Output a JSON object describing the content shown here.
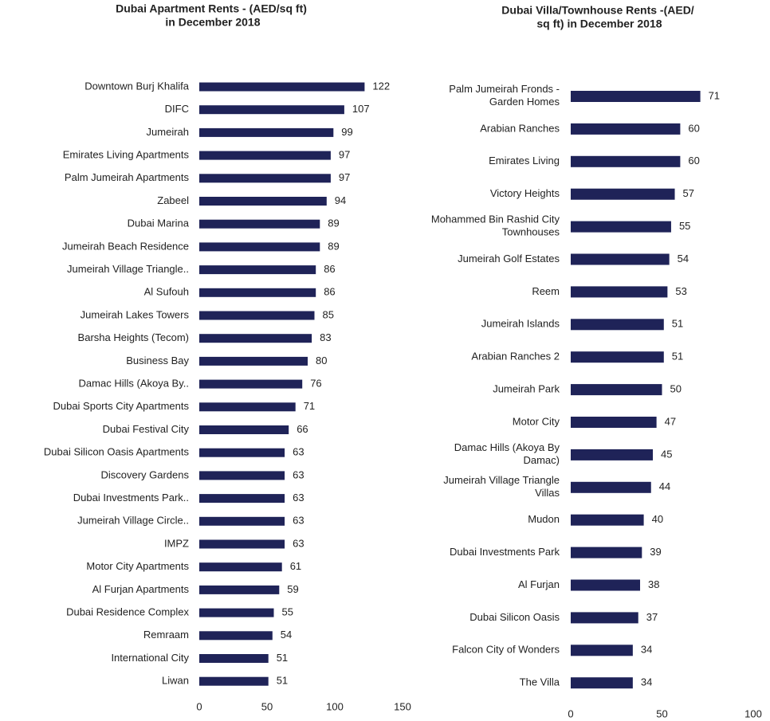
{
  "chart_data": [
    {
      "type": "barh",
      "title": "Dubai Apartment Rents - (AED/sq ft) in December 2018",
      "categories": [
        "Downtown Burj Khalifa",
        "DIFC",
        "Jumeirah",
        "Emirates Living Apartments",
        "Palm Jumeirah Apartments",
        "Zabeel",
        "Dubai Marina",
        "Jumeirah Beach Residence",
        "Jumeirah Village Triangle..",
        "Al Sufouh",
        "Jumeirah Lakes Towers",
        "Barsha Heights (Tecom)",
        "Business Bay",
        "Damac Hills (Akoya By..",
        "Dubai Sports City Apartments",
        "Dubai Festival City",
        "Dubai Silicon Oasis Apartments",
        "Discovery Gardens",
        "Dubai Investments Park..",
        "Jumeirah Village Circle..",
        "IMPZ",
        "Motor City Apartments",
        "Al Furjan Apartments",
        "Dubai Residence Complex",
        "Remraam",
        "International City",
        "Liwan"
      ],
      "values": [
        122,
        107,
        99,
        97,
        97,
        94,
        89,
        89,
        86,
        86,
        85,
        83,
        80,
        76,
        71,
        66,
        63,
        63,
        63,
        63,
        63,
        61,
        59,
        55,
        54,
        51,
        51
      ],
      "color": "#1f2358",
      "xlim": [
        0,
        150
      ],
      "xticks": [
        0,
        50,
        100,
        150
      ]
    },
    {
      "type": "barh",
      "title": "Dubai Villa/Townhouse Rents -(AED/ sq ft) in December 2018",
      "categories": [
        "Palm Jumeirah Fronds - Garden Homes",
        "Arabian Ranches",
        "Emirates Living",
        "Victory Heights",
        "Mohammed Bin Rashid City Townhouses",
        "Jumeirah Golf Estates",
        "Reem",
        "Jumeirah Islands",
        "Arabian Ranches 2",
        "Jumeirah Park",
        "Motor City",
        "Damac Hills (Akoya By Damac)",
        "Jumeirah Village Triangle Villas",
        "Mudon",
        "Dubai Investments Park",
        "Al Furjan",
        "Dubai Silicon Oasis",
        "Falcon City of Wonders",
        "The Villa"
      ],
      "values": [
        71,
        60,
        60,
        57,
        55,
        54,
        53,
        51,
        51,
        50,
        47,
        45,
        44,
        40,
        39,
        38,
        37,
        34,
        34
      ],
      "color": "#1f2358",
      "xlim": [
        0,
        100
      ],
      "xticks": [
        0,
        50,
        100
      ]
    }
  ]
}
